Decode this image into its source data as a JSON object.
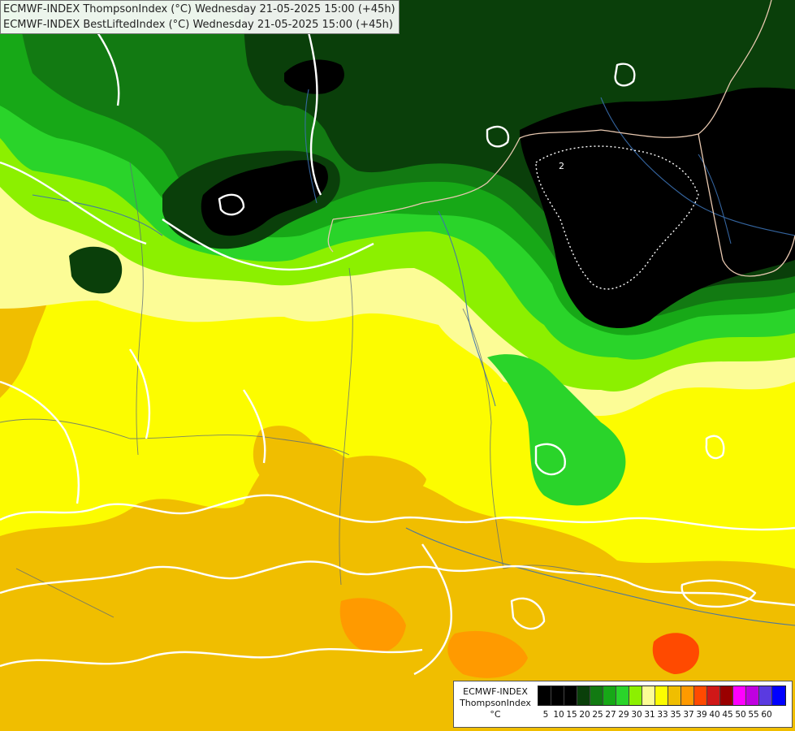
{
  "map": {
    "title_lines": [
      "ECMWF-INDEX ThompsonIndex (°C) Wednesday 21-05-2025 15:00 (+45h)",
      "ECMWF-INDEX BestLiftedIndex (°C) Wednesday 21-05-2025 15:00 (+45h)"
    ],
    "contour_label": "2",
    "layers": [
      "ThompsonIndex shading",
      "BestLiftedIndex contours",
      "country borders",
      "rivers"
    ]
  },
  "legend": {
    "model": "ECMWF-INDEX",
    "parameter": "ThompsonIndex",
    "unit": "°C",
    "ticks": [
      "5",
      "10",
      "15",
      "20",
      "25",
      "27",
      "29",
      "30",
      "31",
      "33",
      "35",
      "37",
      "39",
      "40",
      "45",
      "50",
      "55",
      "60"
    ],
    "colors": [
      "#000000",
      "#000000",
      "#000000",
      "#0a3f0a",
      "#127a12",
      "#17a817",
      "#2ad42a",
      "#8cf000",
      "#fcfc96",
      "#fcfc00",
      "#f0be00",
      "#ff9a00",
      "#ff4a00",
      "#d01818",
      "#9a0000",
      "#ff00ff",
      "#c000e0",
      "#5a3ae0",
      "#0000ff"
    ]
  },
  "colors": {
    "t_black": "#000000",
    "t_dark_green": "#0a3f0a",
    "t_green": "#127a12",
    "t_mid_green": "#17a817",
    "t_light_green": "#2ad42a",
    "t_lime": "#8cf000",
    "t_pale_yellow": "#fcfc96",
    "t_yellow": "#fcfc00",
    "t_light_orange": "#f0be00",
    "t_orange": "#ff9a00",
    "t_red_orange": "#ff4a00",
    "contour": "#ffffff",
    "border": "#e8c8b0",
    "river": "#3a6fb0"
  }
}
